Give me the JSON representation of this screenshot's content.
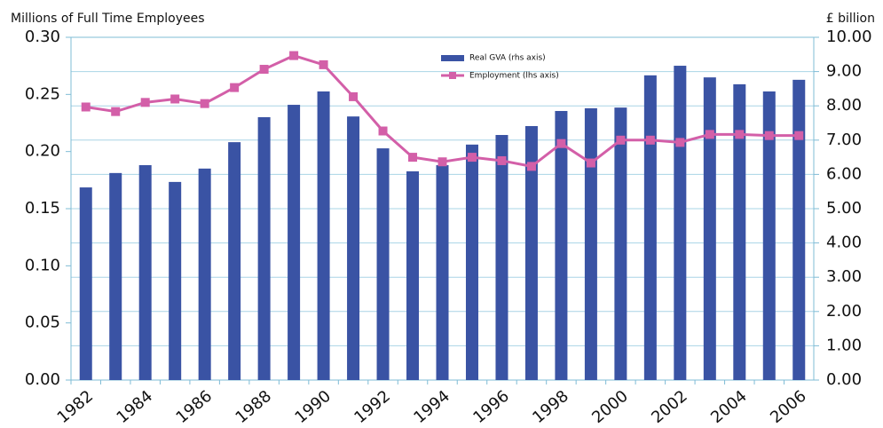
{
  "chart_data": {
    "type": "bar",
    "y_label": "Millions of Full Time Employees",
    "y2_label": "£ billion",
    "categories": [
      "1982",
      null,
      "1984",
      null,
      "1986",
      null,
      "1988",
      null,
      "1990",
      null,
      "1992",
      null,
      "1994",
      null,
      "1996",
      null,
      "1998",
      null,
      "2000",
      null,
      "2002",
      null,
      "2004",
      null,
      "2006"
    ],
    "series": [
      {
        "name": "Real GVA (rhs axis)",
        "type": "bar",
        "axis": "y2",
        "color": "#3a53a4",
        "values": [
          5.62,
          6.04,
          6.27,
          5.78,
          6.17,
          6.94,
          7.67,
          8.03,
          8.42,
          7.69,
          6.76,
          6.09,
          6.27,
          6.87,
          7.15,
          7.41,
          7.85,
          7.93,
          7.95,
          8.89,
          9.17,
          8.83,
          8.63,
          8.42,
          8.76
        ]
      },
      {
        "name": "Employment (lhs axis)",
        "type": "line",
        "axis": "y",
        "color": "#d35fa8",
        "values": [
          0.239,
          0.235,
          0.243,
          0.246,
          0.242,
          0.256,
          0.272,
          0.284,
          0.276,
          0.248,
          0.218,
          0.195,
          0.191,
          0.195,
          0.192,
          0.187,
          0.207,
          0.19,
          0.21,
          0.21,
          0.208,
          0.215,
          0.215,
          0.214,
          0.214
        ]
      }
    ],
    "ylim": [
      0,
      0.3
    ],
    "yticks": [
      {
        "value": 0,
        "label": "0.00"
      },
      0.05,
      {
        "value": 0.1,
        "label": "0.10"
      },
      0.15,
      {
        "value": 0.2,
        "label": "0.20"
      },
      0.25,
      {
        "value": 0.3,
        "label": "0.30"
      }
    ],
    "y2lim": [
      0,
      10
    ],
    "y2ticks": [
      {
        "value": 0,
        "label": "0.00"
      },
      {
        "value": 1,
        "label": "1.00"
      },
      {
        "value": 2,
        "label": "2.00"
      },
      {
        "value": 3,
        "label": "3.00"
      },
      {
        "value": 4,
        "label": "4.00"
      },
      {
        "value": 5,
        "label": "5.00"
      },
      {
        "value": 6,
        "label": "6.00"
      },
      {
        "value": 7,
        "label": "7.00"
      },
      {
        "value": 8,
        "label": "8.00"
      },
      {
        "value": 9,
        "label": "9.00"
      },
      {
        "value": 10,
        "label": "10.00"
      }
    ],
    "grid": true
  }
}
